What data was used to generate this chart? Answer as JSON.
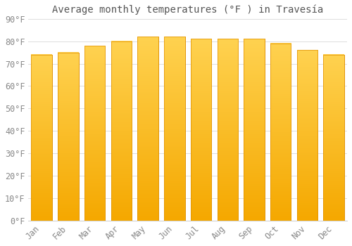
{
  "title": "Average monthly temperatures (°F ) in Travesía",
  "months": [
    "Jan",
    "Feb",
    "Mar",
    "Apr",
    "May",
    "Jun",
    "Jul",
    "Aug",
    "Sep",
    "Oct",
    "Nov",
    "Dec"
  ],
  "values": [
    74,
    75,
    78,
    80,
    82,
    82,
    81,
    81,
    81,
    79,
    76,
    74
  ],
  "bar_color_top": "#FFD966",
  "bar_color_bottom": "#F5A800",
  "bar_edge_color": "#E09000",
  "background_color": "#FFFFFF",
  "grid_color": "#DDDDDD",
  "ylim": [
    0,
    90
  ],
  "yticks": [
    0,
    10,
    20,
    30,
    40,
    50,
    60,
    70,
    80,
    90
  ],
  "ytick_labels": [
    "0°F",
    "10°F",
    "20°F",
    "30°F",
    "40°F",
    "50°F",
    "60°F",
    "70°F",
    "80°F",
    "90°F"
  ],
  "title_fontsize": 10,
  "tick_fontsize": 8.5,
  "font_color": "#888888",
  "title_color": "#555555"
}
